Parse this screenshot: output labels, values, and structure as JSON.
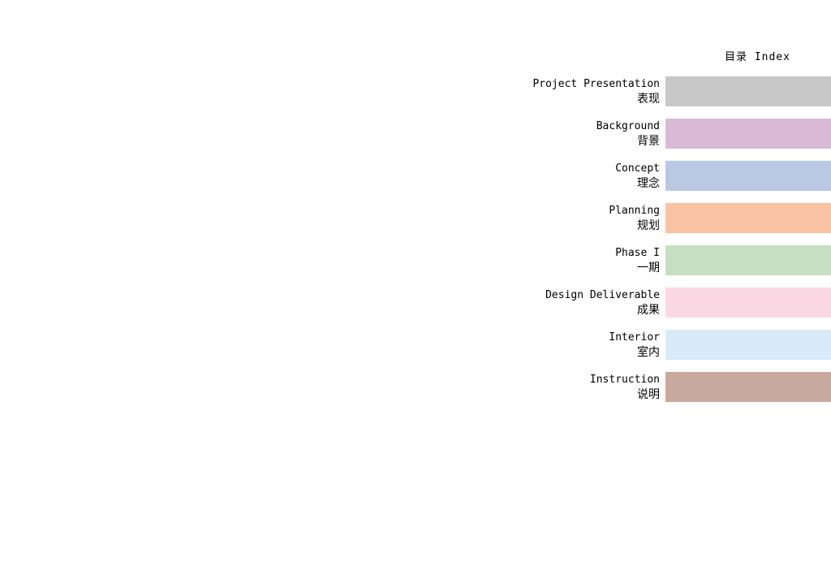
{
  "page": {
    "title": "目录 Index"
  },
  "index": {
    "items": [
      {
        "title_en": "Project Presentation",
        "title_zh": "表现",
        "color": "#c8c8c8"
      },
      {
        "title_en": "Background",
        "title_zh": "背景",
        "color": "#d8bad5"
      },
      {
        "title_en": "Concept",
        "title_zh": "理念",
        "color": "#b9c9e4"
      },
      {
        "title_en": "Planning",
        "title_zh": "规划",
        "color": "#f8c3a3"
      },
      {
        "title_en": "Phase I",
        "title_zh": "一期",
        "color": "#c6dfc3"
      },
      {
        "title_en": "Design Deliverable",
        "title_zh": "成果",
        "color": "#f9d8e4"
      },
      {
        "title_en": "Interior",
        "title_zh": "室内",
        "color": "#d9ebf8"
      },
      {
        "title_en": "Instruction",
        "title_zh": "说明",
        "color": "#c8a99d"
      }
    ]
  }
}
